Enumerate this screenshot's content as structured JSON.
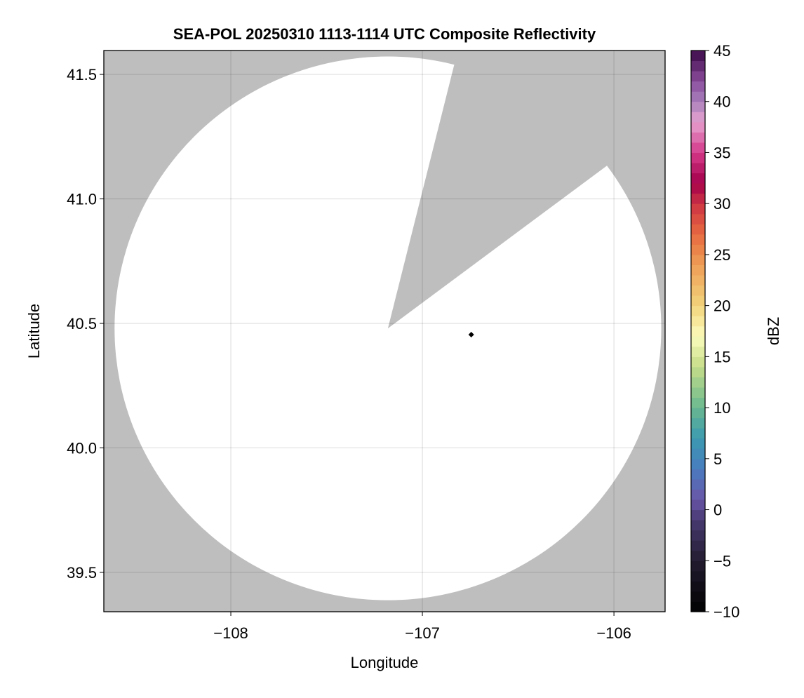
{
  "chart_data": {
    "type": "heatmap",
    "title": "SEA-POL 20250310 1113-1114 UTC Composite Reflectivity",
    "xlabel": "Longitude",
    "ylabel": "Latitude",
    "xlim": [
      -108.663,
      -105.733
    ],
    "ylim": [
      39.342,
      41.596
    ],
    "xticks": [
      -108,
      -107,
      -106
    ],
    "xtick_labels": [
      "−108",
      "−107",
      "−106"
    ],
    "yticks": [
      39.5,
      40.0,
      40.5,
      41.0,
      41.5
    ],
    "ytick_labels": [
      "39.5",
      "40.0",
      "40.5",
      "41.0",
      "41.5"
    ],
    "grid": true,
    "background_color": "#bebebe",
    "no_echo_color": "#ffffff",
    "radar_coverage": {
      "center": [
        -107.18,
        40.48
      ],
      "radius_lon_deg": 1.427,
      "radius_lat_deg": 1.092,
      "blocked_sector": {
        "edge_points": [
          [
            -106.84,
            41.52
          ],
          [
            -106.06,
            41.12
          ]
        ]
      }
    },
    "marker": {
      "lon": -106.745,
      "lat": 40.455,
      "shape": "diamond",
      "color": "#000000"
    },
    "colorbar": {
      "label": "dBZ",
      "range": [
        -10,
        45
      ],
      "step": 1,
      "ticks": [
        -10,
        -5,
        0,
        5,
        10,
        15,
        20,
        25,
        30,
        35,
        40,
        45
      ],
      "tick_labels": [
        "−10",
        "−5",
        "0",
        "5",
        "10",
        "15",
        "20",
        "25",
        "30",
        "35",
        "40",
        "45"
      ],
      "colormap": [
        [
          -10,
          "#000000"
        ],
        [
          -5,
          "#231c30"
        ],
        [
          -1,
          "#473a70"
        ],
        [
          1,
          "#6a55a8"
        ],
        [
          4,
          "#4a7cc0"
        ],
        [
          7,
          "#3a9ab0"
        ],
        [
          10,
          "#6ab890"
        ],
        [
          14,
          "#c4dc88"
        ],
        [
          17,
          "#fbfcbc"
        ],
        [
          20,
          "#f2d47c"
        ],
        [
          24,
          "#ee9e56"
        ],
        [
          27,
          "#e86a40"
        ],
        [
          30,
          "#cc3444"
        ],
        [
          32,
          "#a4004a"
        ],
        [
          35,
          "#d43a8a"
        ],
        [
          38,
          "#e6a2d0"
        ],
        [
          40,
          "#a880bc"
        ],
        [
          42,
          "#8a4c9c"
        ],
        [
          45,
          "#3c0a48"
        ]
      ]
    }
  }
}
